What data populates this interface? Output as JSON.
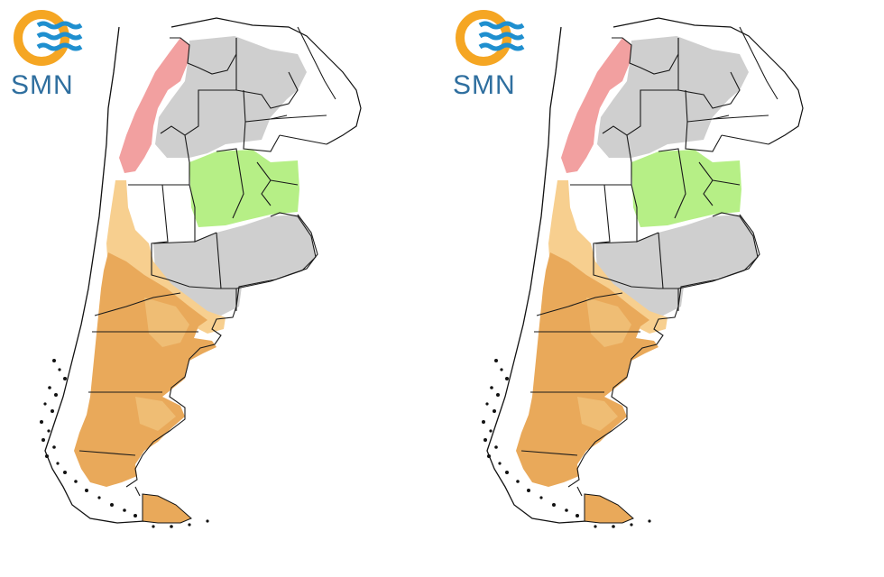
{
  "logo": {
    "text": "SMN",
    "colors": {
      "ring": "#f5a623",
      "waves": "#1f8fcf",
      "text": "#2f6f9f"
    }
  },
  "map": {
    "region": "Argentina",
    "panels": 2,
    "category_colors": {
      "red": "#f2a0a0",
      "gray": "#cfcfcf",
      "green": "#b6ef86",
      "light_orange": "#f7cf8f",
      "orange": "#e9a95a",
      "white": "#ffffff",
      "border": "#1a1a1a"
    }
  }
}
